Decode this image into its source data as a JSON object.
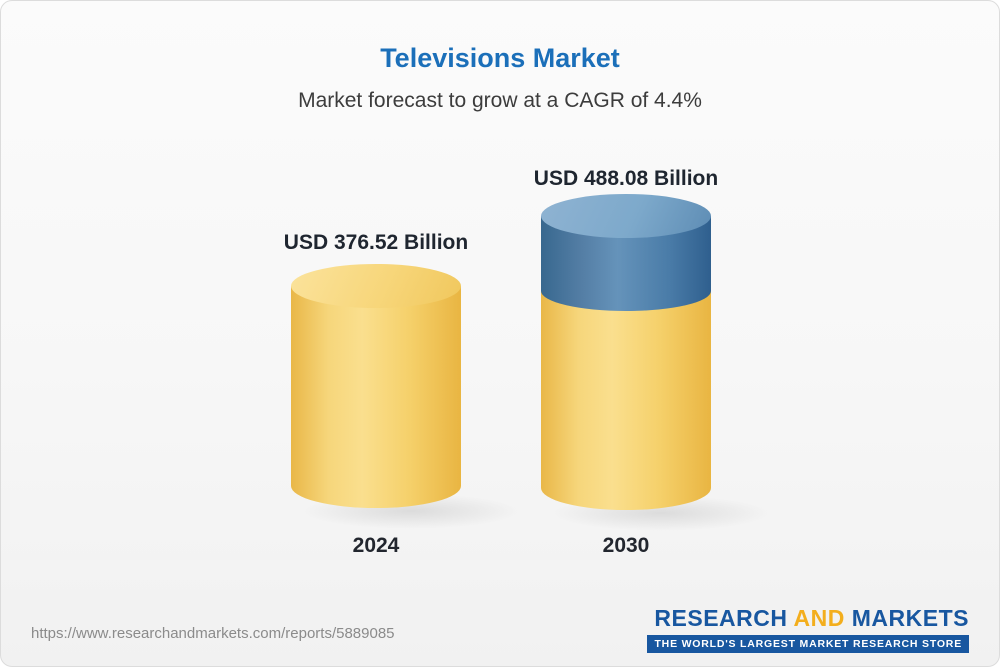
{
  "header": {
    "title": "Televisions Market",
    "subtitle": "Market forecast to grow at a CAGR of 4.4%"
  },
  "chart_data": {
    "type": "bar",
    "categories": [
      "2024",
      "2030"
    ],
    "values": [
      376.52,
      488.08
    ],
    "unit": "USD Billion",
    "value_labels": [
      "USD 376.52 Billion",
      "USD 488.08 Billion"
    ],
    "title": "Televisions Market",
    "subtitle": "Market forecast to grow at a CAGR of 4.4%",
    "cagr_percent": 4.4,
    "legend_position": "none",
    "grid": false,
    "colors": {
      "base_bar": "#f5d06a",
      "growth_segment": "#4a7ca8",
      "title_text": "#1b6fb9",
      "label_text": "#1f2630"
    }
  },
  "footer": {
    "url": "https://www.researchandmarkets.com/reports/5889085",
    "logo": {
      "part1": "RESEARCH",
      "part2": "AND",
      "part3": "MARKETS",
      "tagline": "THE WORLD'S LARGEST MARKET RESEARCH STORE",
      "brand_blue": "#1857a0",
      "brand_gold": "#f3ae1d"
    }
  }
}
